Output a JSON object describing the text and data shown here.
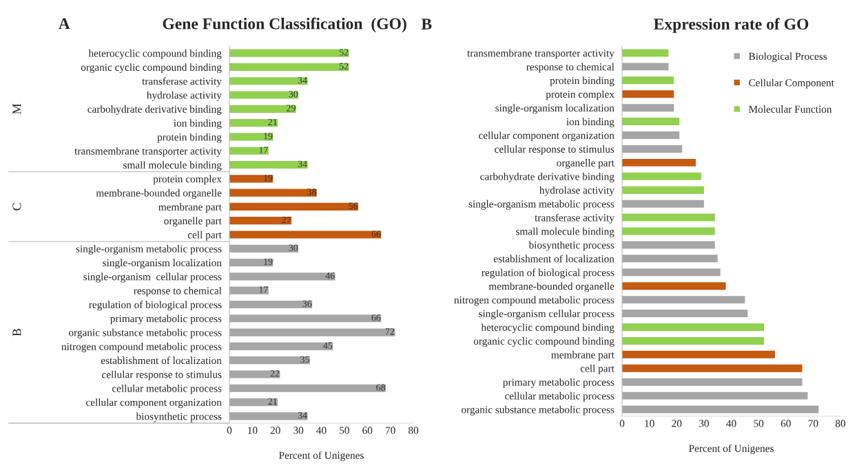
{
  "chart_data": [
    {
      "type": "bar",
      "orientation": "horizontal",
      "title": "Gene Function Classification  (GO)",
      "xlabel": "Percent of Unigenes",
      "annotations": [
        "A",
        "M",
        "C",
        "B"
      ],
      "categories": [
        "heterocyclic compound binding",
        "organic cyclic compound binding",
        "transferase activity",
        "hydrolase activity",
        "carbohydrate derivative binding",
        "ion binding",
        "protein binding",
        "transmembrane transporter activity",
        "small molecule binding",
        "protein complex",
        "membrane-bounded organelle",
        "membrane part",
        "organelle part",
        "cell part",
        "single-organism metabolic process",
        "single-organism localization",
        "single-organism  cellular process",
        "response to chemical",
        "regulation of biological process",
        "primary metabolic process",
        "organic substance metabolic process",
        "nitrogen compound metabolic process",
        "establishment of localization",
        "cellular response to stimulus",
        "cellular metabolic process",
        "cellular component organization",
        "biosynthetic process"
      ],
      "values": [
        52,
        52,
        34,
        30,
        29,
        21,
        19,
        17,
        34,
        19,
        38,
        56,
        27,
        66,
        30,
        19,
        46,
        17,
        36,
        66,
        72,
        45,
        35,
        22,
        68,
        21,
        34
      ],
      "colors": [
        "#92d050",
        "#92d050",
        "#92d050",
        "#92d050",
        "#92d050",
        "#92d050",
        "#92d050",
        "#92d050",
        "#92d050",
        "#c55a11",
        "#c55a11",
        "#c55a11",
        "#c55a11",
        "#c55a11",
        "#a6a6a6",
        "#a6a6a6",
        "#a6a6a6",
        "#a6a6a6",
        "#a6a6a6",
        "#a6a6a6",
        "#a6a6a6",
        "#a6a6a6",
        "#a6a6a6",
        "#a6a6a6",
        "#a6a6a6",
        "#a6a6a6",
        "#a6a6a6"
      ],
      "data_labels": true,
      "xlim": [
        0,
        80
      ],
      "xticks": [
        0,
        10,
        20,
        30,
        40,
        50,
        60,
        70,
        80
      ],
      "grid": false
    },
    {
      "type": "bar",
      "orientation": "horizontal",
      "title": "Expression rate of GO",
      "xlabel": "Percent of Unigenes",
      "annotations": [
        "B"
      ],
      "categories": [
        "transmembrane transporter activity",
        "response to chemical",
        "protein binding",
        "protein complex",
        "single-organism localization",
        "ion binding",
        "cellular component organization",
        "cellular response to stimulus",
        "organelle part",
        "carbohydrate derivative binding",
        "hydrolase activity",
        "single-organism metabolic process",
        "transferase activity",
        "small molecule binding",
        "biosynthetic process",
        "establishment of localization",
        "regulation of biological process",
        "membrane-bounded organelle",
        "nitrogen compound metabolic process",
        "single-organism cellular process",
        "heterocyclic compound binding",
        "organic cyclic compound binding",
        "membrane part",
        "cell part",
        "primary metabolic process",
        "cellular metabolic process",
        "organic substance metabolic process"
      ],
      "series": [
        {
          "name": "Biological Process",
          "color": "#a6a6a6",
          "values": [
            null,
            17,
            null,
            null,
            19,
            null,
            21,
            22,
            null,
            null,
            null,
            30,
            null,
            null,
            34,
            35,
            36,
            null,
            45,
            46,
            null,
            null,
            null,
            null,
            66,
            68,
            72
          ]
        },
        {
          "name": "Cellular Component",
          "color": "#c55a11",
          "values": [
            null,
            null,
            null,
            19,
            null,
            null,
            null,
            null,
            27,
            null,
            null,
            null,
            null,
            null,
            null,
            null,
            null,
            38,
            null,
            null,
            null,
            null,
            56,
            66,
            null,
            null,
            null
          ]
        },
        {
          "name": "Molecular Function",
          "color": "#92d050",
          "values": [
            17,
            null,
            19,
            null,
            null,
            21,
            null,
            null,
            null,
            29,
            30,
            null,
            34,
            34,
            null,
            null,
            null,
            null,
            null,
            null,
            52,
            52,
            null,
            null,
            null,
            null,
            null
          ]
        }
      ],
      "legend": "top right",
      "xlim": [
        0,
        80
      ],
      "xticks": [
        0,
        10,
        20,
        30,
        40,
        50,
        60,
        70,
        80
      ],
      "grid": false
    }
  ]
}
